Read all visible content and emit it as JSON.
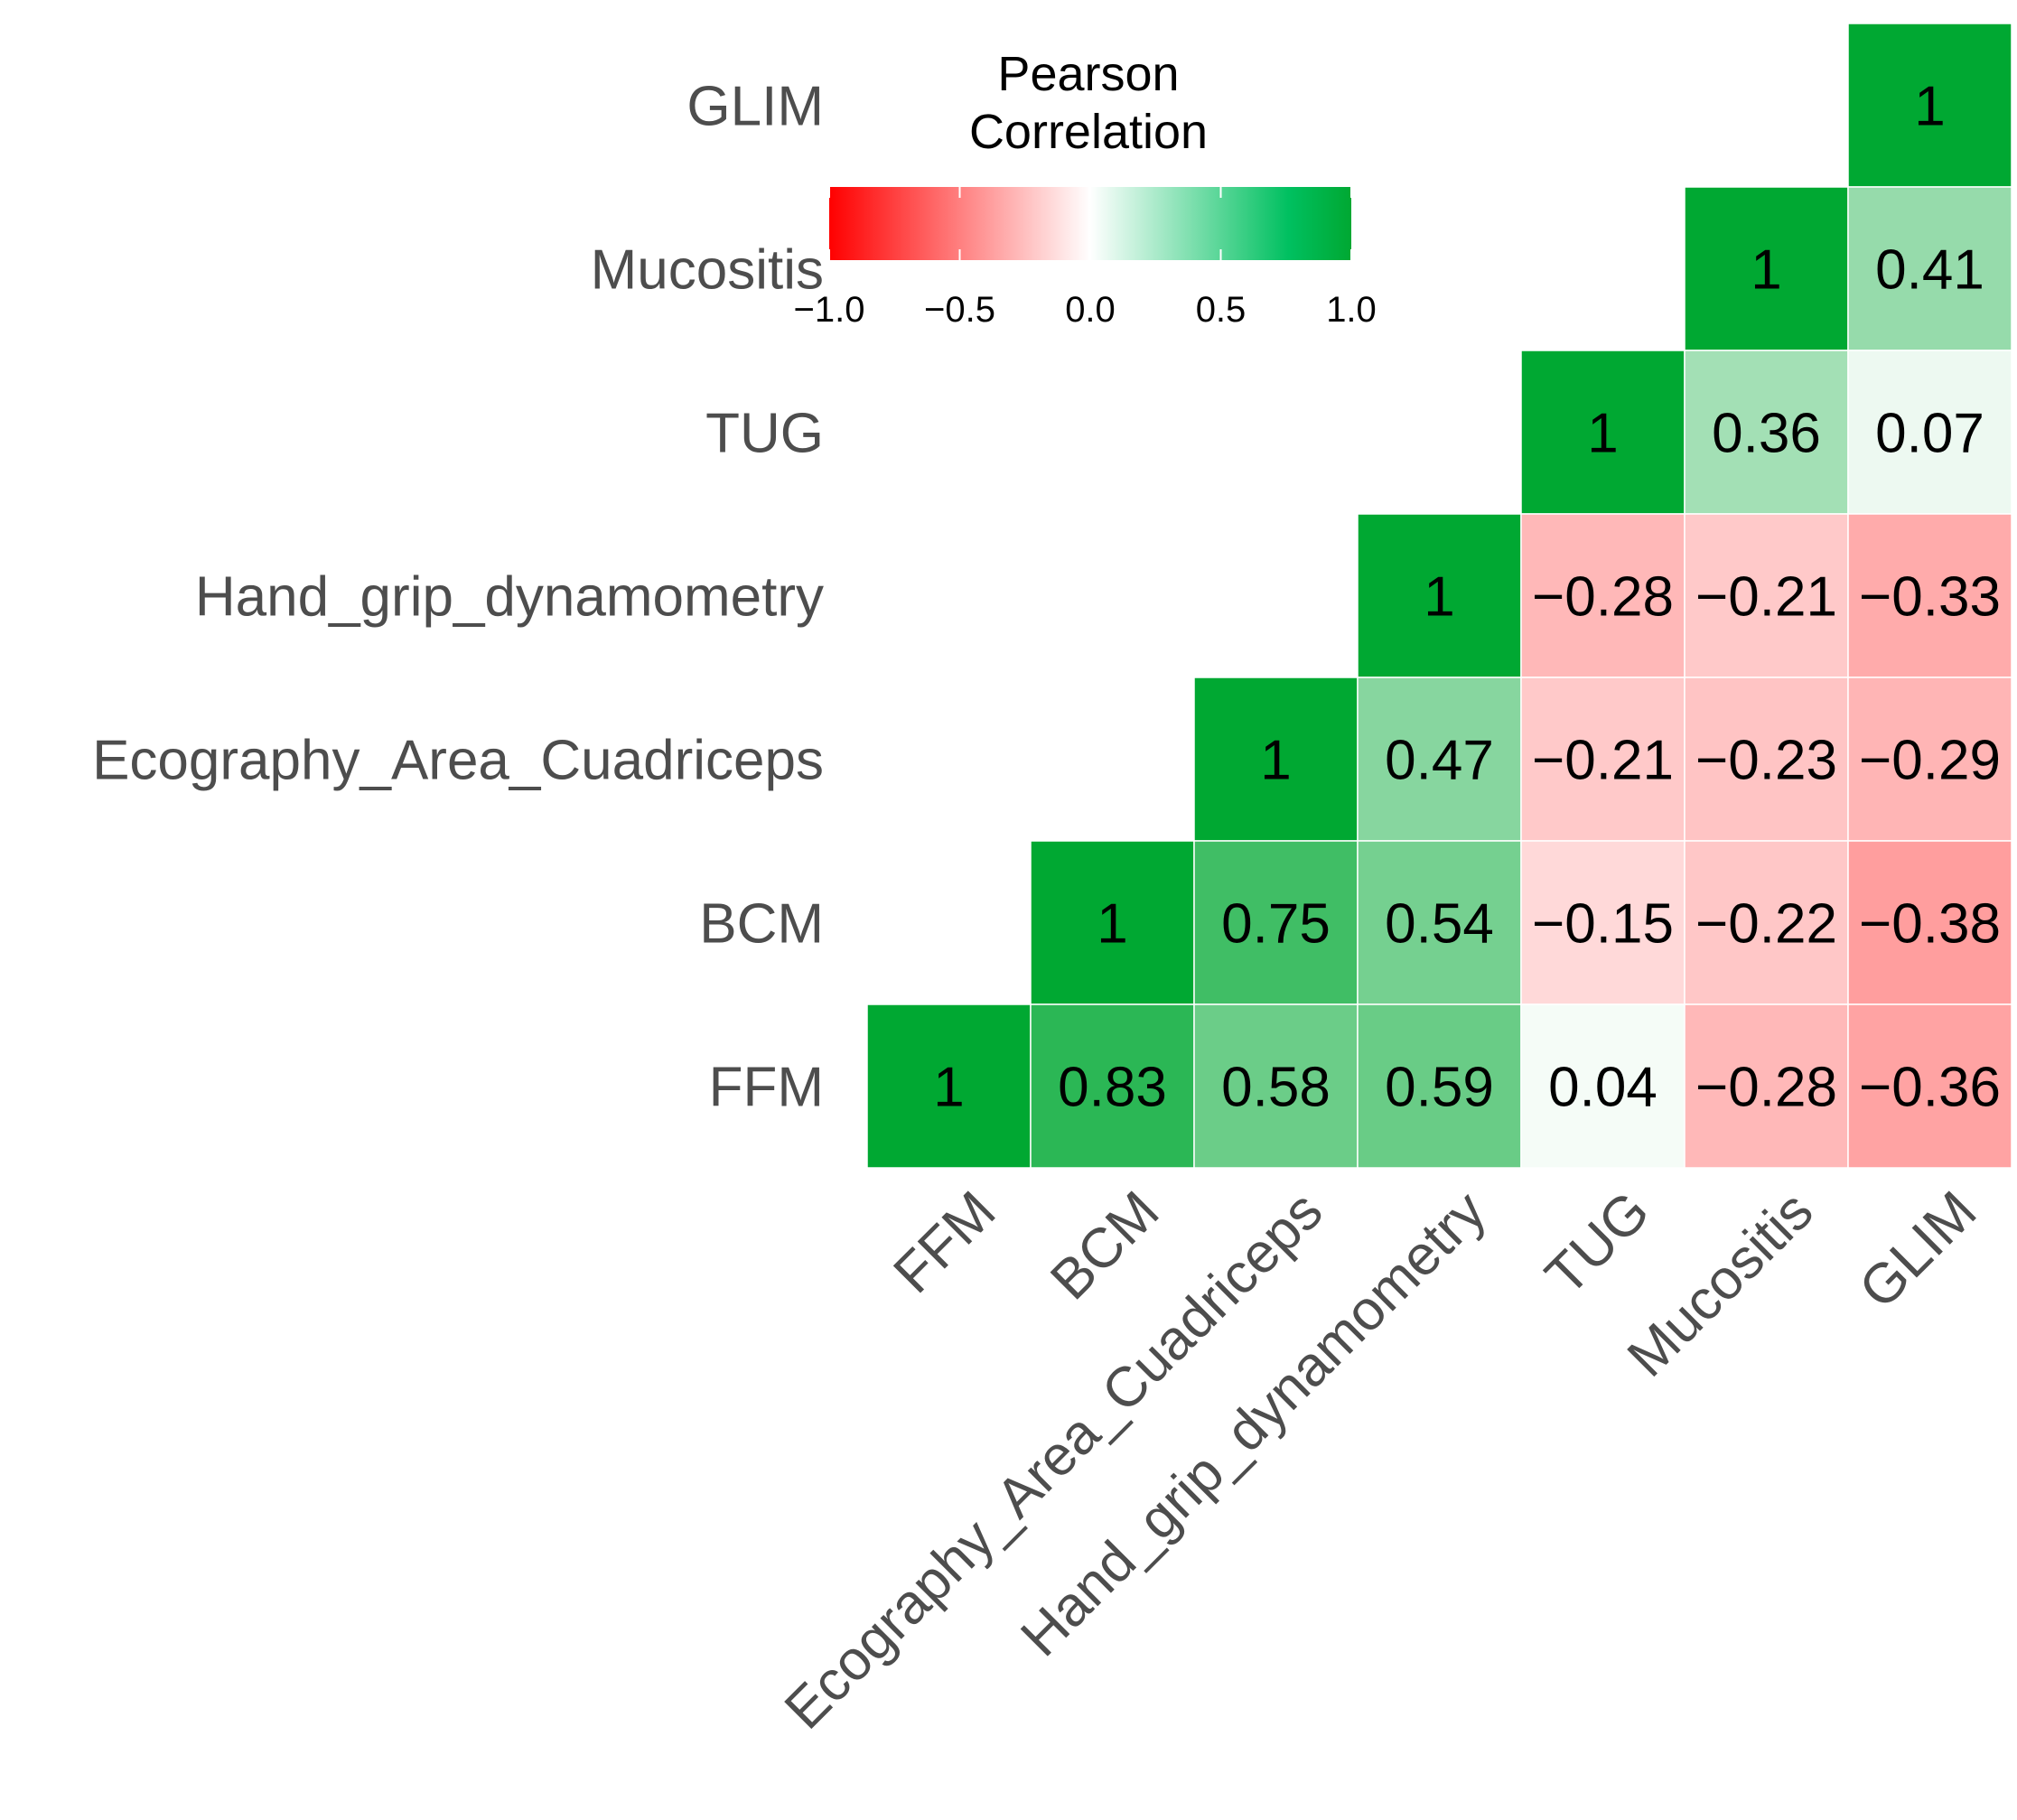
{
  "chart_data": {
    "type": "heatmap",
    "variables": [
      "FFM",
      "BCM",
      "Ecography_Area_Cuadriceps",
      "Hand_grip_dynamometry",
      "TUG",
      "Mucositis",
      "GLIM"
    ],
    "values": [
      {
        "row": "GLIM",
        "col": "GLIM",
        "value": 1
      },
      {
        "row": "Mucositis",
        "col": "Mucositis",
        "value": 1
      },
      {
        "row": "Mucositis",
        "col": "GLIM",
        "value": 0.41
      },
      {
        "row": "TUG",
        "col": "TUG",
        "value": 1
      },
      {
        "row": "TUG",
        "col": "Mucositis",
        "value": 0.36
      },
      {
        "row": "TUG",
        "col": "GLIM",
        "value": 0.07
      },
      {
        "row": "Hand_grip_dynamometry",
        "col": "Hand_grip_dynamometry",
        "value": 1
      },
      {
        "row": "Hand_grip_dynamometry",
        "col": "TUG",
        "value": -0.28
      },
      {
        "row": "Hand_grip_dynamometry",
        "col": "Mucositis",
        "value": -0.21
      },
      {
        "row": "Hand_grip_dynamometry",
        "col": "GLIM",
        "value": -0.33
      },
      {
        "row": "Ecography_Area_Cuadriceps",
        "col": "Ecography_Area_Cuadriceps",
        "value": 1
      },
      {
        "row": "Ecography_Area_Cuadriceps",
        "col": "Hand_grip_dynamometry",
        "value": 0.47
      },
      {
        "row": "Ecography_Area_Cuadriceps",
        "col": "TUG",
        "value": -0.21
      },
      {
        "row": "Ecography_Area_Cuadriceps",
        "col": "Mucositis",
        "value": -0.23
      },
      {
        "row": "Ecography_Area_Cuadriceps",
        "col": "GLIM",
        "value": -0.29
      },
      {
        "row": "BCM",
        "col": "BCM",
        "value": 1
      },
      {
        "row": "BCM",
        "col": "Ecography_Area_Cuadriceps",
        "value": 0.75
      },
      {
        "row": "BCM",
        "col": "Hand_grip_dynamometry",
        "value": 0.54
      },
      {
        "row": "BCM",
        "col": "TUG",
        "value": -0.15
      },
      {
        "row": "BCM",
        "col": "Mucositis",
        "value": -0.22
      },
      {
        "row": "BCM",
        "col": "GLIM",
        "value": -0.38
      },
      {
        "row": "FFM",
        "col": "FFM",
        "value": 1
      },
      {
        "row": "FFM",
        "col": "BCM",
        "value": 0.83
      },
      {
        "row": "FFM",
        "col": "Ecography_Area_Cuadriceps",
        "value": 0.58
      },
      {
        "row": "FFM",
        "col": "Hand_grip_dynamometry",
        "value": 0.59
      },
      {
        "row": "FFM",
        "col": "TUG",
        "value": 0.04
      },
      {
        "row": "FFM",
        "col": "Mucositis",
        "value": -0.28
      },
      {
        "row": "FFM",
        "col": "GLIM",
        "value": -0.36
      }
    ],
    "legend": {
      "title_lines": [
        "Pearson",
        "Correlation"
      ],
      "ticks": [
        "−1.0",
        "−0.5",
        "0.0",
        "0.5",
        "1.0"
      ],
      "range": [
        -1,
        1
      ],
      "placement": "top-left"
    },
    "colors": {
      "negative": "#ff0000",
      "midpoint": "#ffffff",
      "positive": "#00a832"
    }
  }
}
